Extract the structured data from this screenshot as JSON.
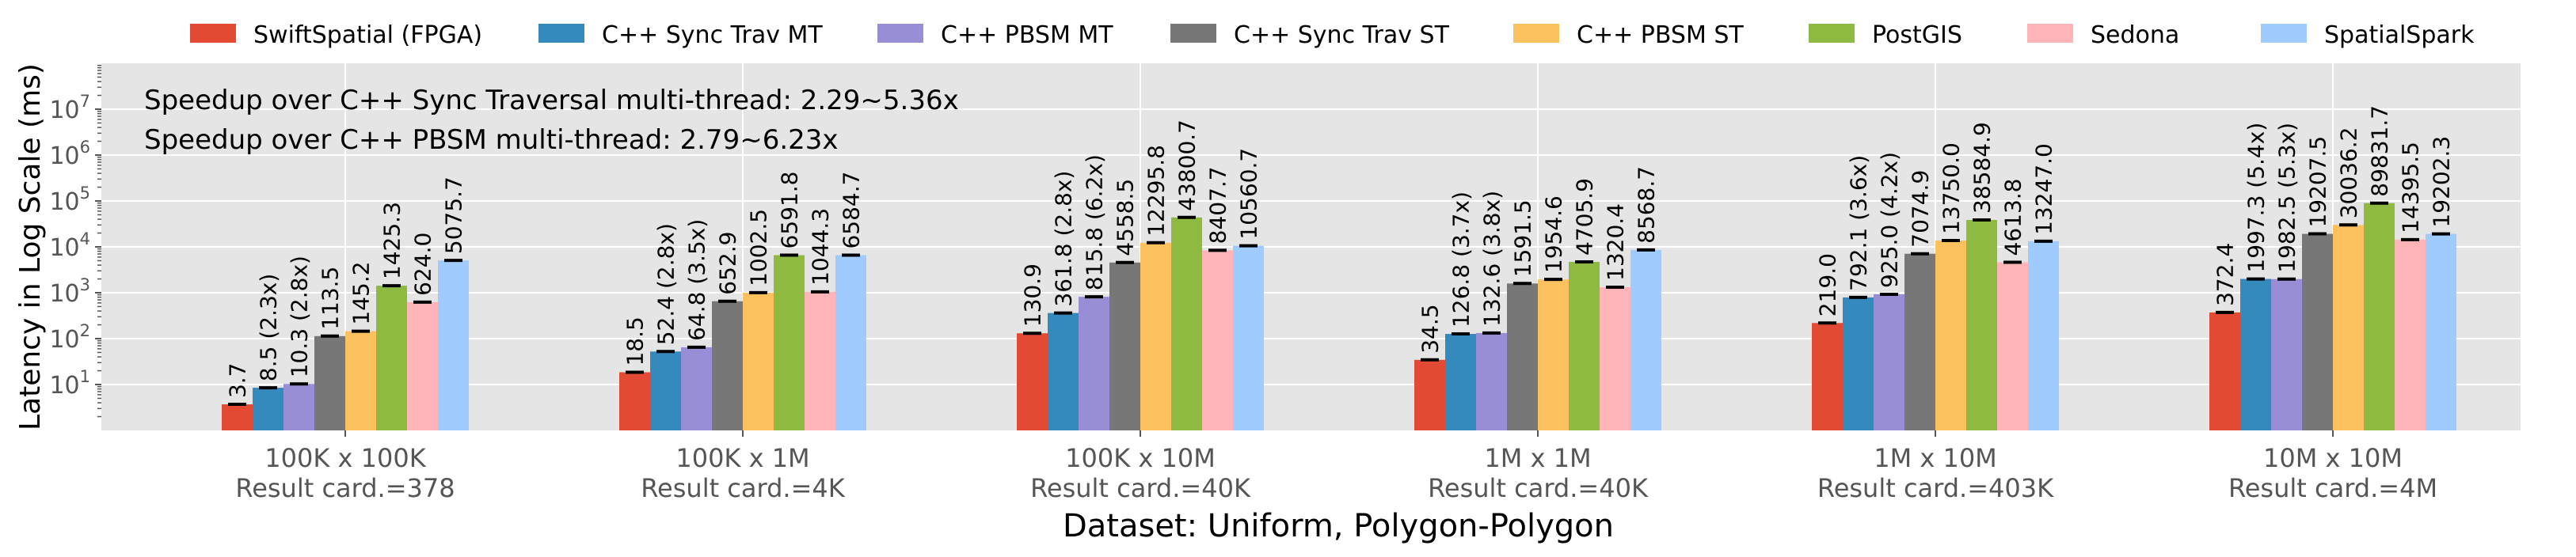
{
  "chart_data": {
    "type": "bar",
    "title": "",
    "xlabel": "Dataset: Uniform, Polygon-Polygon",
    "ylabel": "Latency in Log Scale (ms)",
    "yscale": "log",
    "ylim": [
      1,
      100000000
    ],
    "yticks": [
      {
        "value": 10,
        "base": "10",
        "exp": "1"
      },
      {
        "value": 100,
        "base": "10",
        "exp": "2"
      },
      {
        "value": 1000,
        "base": "10",
        "exp": "3"
      },
      {
        "value": 10000,
        "base": "10",
        "exp": "4"
      },
      {
        "value": 100000,
        "base": "10",
        "exp": "5"
      },
      {
        "value": 1000000,
        "base": "10",
        "exp": "6"
      },
      {
        "value": 10000000,
        "base": "10",
        "exp": "7"
      }
    ],
    "grid": true,
    "legend_position": "top",
    "annotations": [
      "Speedup over C++ Sync Traversal multi-thread: 2.29~5.36x",
      "Speedup over C++ PBSM multi-thread: 2.79~6.23x"
    ],
    "categories": [
      {
        "name": "100K x 100K",
        "card": "Result card.=378"
      },
      {
        "name": "100K x 1M",
        "card": "Result card.=4K"
      },
      {
        "name": "100K x 10M",
        "card": "Result card.=40K"
      },
      {
        "name": "1M x 1M",
        "card": "Result card.=40K"
      },
      {
        "name": "1M x 10M",
        "card": "Result card.=403K"
      },
      {
        "name": "10M x 10M",
        "card": "Result card.=4M"
      }
    ],
    "series": [
      {
        "name": "SwiftSpatial (FPGA)",
        "color": "#e24a33",
        "values": [
          3.7,
          18.5,
          130.9,
          34.5,
          219.0,
          372.4
        ],
        "labels": [
          "3.7",
          "18.5",
          "130.9",
          "34.5",
          "219.0",
          "372.4"
        ]
      },
      {
        "name": "C++ Sync Trav MT",
        "color": "#348abd",
        "values": [
          8.5,
          52.4,
          361.8,
          126.8,
          792.1,
          1997.3
        ],
        "labels": [
          "8.5 (2.3x)",
          "52.4 (2.8x)",
          "361.8 (2.8x)",
          "126.8 (3.7x)",
          "792.1 (3.6x)",
          "1997.3 (5.4x)"
        ]
      },
      {
        "name": "C++ PBSM MT",
        "color": "#988ed5",
        "values": [
          10.3,
          64.8,
          815.8,
          132.6,
          925.0,
          1982.5
        ],
        "labels": [
          "10.3 (2.8x)",
          "64.8 (3.5x)",
          "815.8 (6.2x)",
          "132.6 (3.8x)",
          "925.0 (4.2x)",
          "1982.5 (5.3x)"
        ]
      },
      {
        "name": "C++ Sync Trav ST",
        "color": "#777777",
        "values": [
          113.5,
          652.9,
          4558.5,
          1591.5,
          7074.9,
          19207.5
        ],
        "labels": [
          "113.5",
          "652.9",
          "4558.5",
          "1591.5",
          "7074.9",
          "19207.5"
        ]
      },
      {
        "name": "C++ PBSM ST",
        "color": "#fbc15e",
        "values": [
          145.2,
          1002.5,
          12295.8,
          1954.6,
          13750.0,
          30036.2
        ],
        "labels": [
          "145.2",
          "1002.5",
          "12295.8",
          "1954.6",
          "13750.0",
          "30036.2"
        ]
      },
      {
        "name": "PostGIS",
        "color": "#8eba42",
        "values": [
          1425.3,
          6591.8,
          43800.7,
          4705.9,
          38584.9,
          89831.7
        ],
        "labels": [
          "1425.3",
          "6591.8",
          "43800.7",
          "4705.9",
          "38584.9",
          "89831.7"
        ]
      },
      {
        "name": "Sedona",
        "color": "#ffb5b8",
        "values": [
          624.0,
          1044.3,
          8407.7,
          1320.4,
          4613.8,
          14395.5
        ],
        "labels": [
          "624.0",
          "1044.3",
          "8407.7",
          "1320.4",
          "4613.8",
          "14395.5"
        ]
      },
      {
        "name": "SpatialSpark",
        "color": "#a0cbff",
        "values": [
          5075.7,
          6584.7,
          10560.7,
          8568.7,
          13247.0,
          19202.3
        ],
        "labels": [
          "5075.7",
          "6584.7",
          "10560.7",
          "8568.7",
          "13247.0",
          "19202.3"
        ]
      }
    ]
  }
}
